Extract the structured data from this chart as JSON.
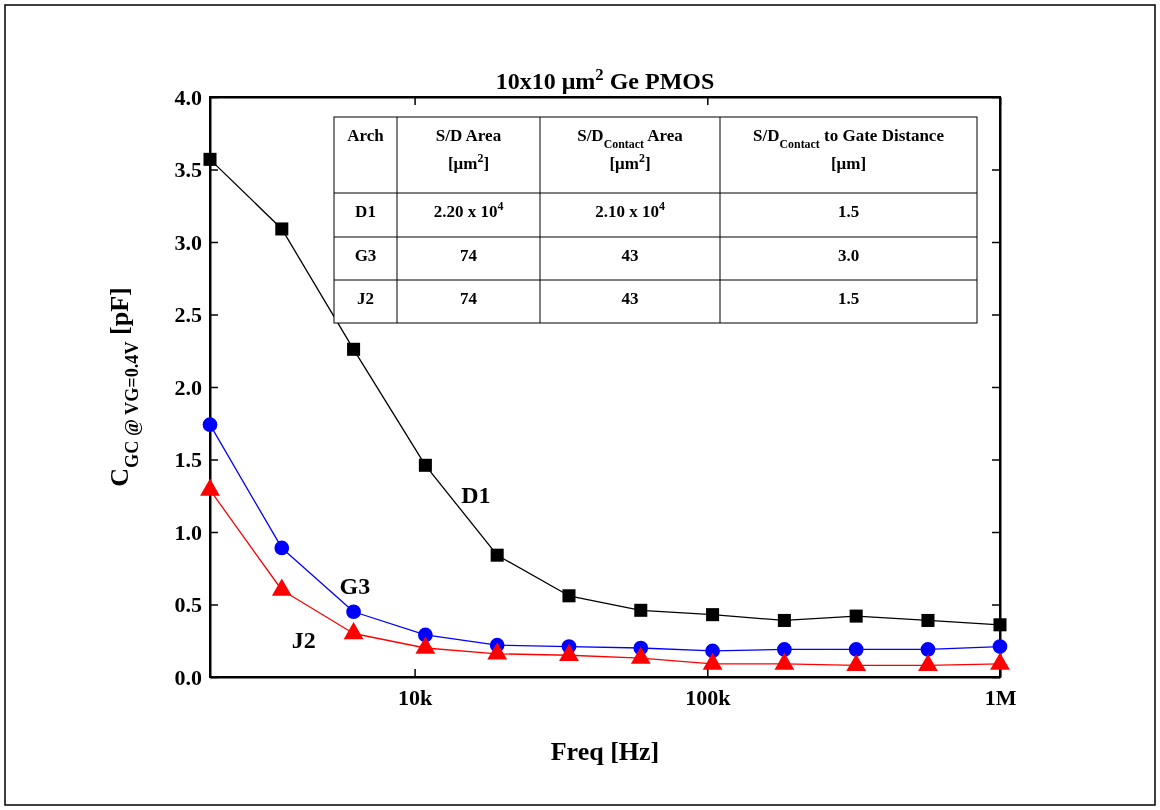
{
  "chart_data": {
    "type": "line",
    "title": "10x10 μm$^{2}$ Ge PMOS",
    "xlabel": "Freq [Hz]",
    "ylabel": "C$_{GC @ VG=0.4V}$ [pF]",
    "x": [
      2000,
      3518,
      6188,
      10886,
      19150,
      33687,
      59259,
      104244,
      183376,
      322580,
      567450,
      1000000
    ],
    "log": "x",
    "xlim": [
      2000,
      1000000
    ],
    "xticks": [
      {
        "value": 10000,
        "label": "10k"
      },
      {
        "value": 100000,
        "label": "100k"
      },
      {
        "value": 1000000,
        "label": "1M"
      }
    ],
    "ylim": [
      0,
      4
    ],
    "yticks": [
      {
        "value": 0,
        "label": "0.0"
      },
      {
        "value": 0.5,
        "label": "0.5"
      },
      {
        "value": 1,
        "label": "1.0"
      },
      {
        "value": 1.5,
        "label": "1.5"
      },
      {
        "value": 2,
        "label": "2.0"
      },
      {
        "value": 2.5,
        "label": "2.5"
      },
      {
        "value": 3,
        "label": "3.0"
      },
      {
        "value": 3.5,
        "label": "3.5"
      },
      {
        "value": 4,
        "label": "4.0"
      }
    ],
    "grid": false,
    "legend": false,
    "series": [
      {
        "name": "D1",
        "color": "#000000",
        "marker": "square",
        "values": [
          3.57,
          3.09,
          2.26,
          1.46,
          0.84,
          0.56,
          0.46,
          0.43,
          0.39,
          0.42,
          0.39,
          0.36
        ]
      },
      {
        "name": "G3",
        "color": "#0000ff",
        "marker": "circle",
        "values": [
          1.74,
          0.89,
          0.45,
          0.29,
          0.22,
          0.21,
          0.2,
          0.18,
          0.19,
          0.19,
          0.19,
          0.21
        ]
      },
      {
        "name": "J2",
        "color": "#ff0000",
        "marker": "triangle",
        "values": [
          1.29,
          0.6,
          0.3,
          0.2,
          0.16,
          0.15,
          0.13,
          0.09,
          0.09,
          0.08,
          0.08,
          0.09
        ]
      }
    ],
    "annotations": [
      "Arch",
      "S/D Area\n[μm$^{2}$]",
      "S/D$_{Contact}$ Area\n[μm$^{2}$]",
      "S/D$_{Contact}$ to Gate Distance\n[μm]",
      "D1",
      "2.20 x 10$^{4}$",
      "2.10 x 10$^{4}$",
      "1.5",
      "G3",
      "74",
      "43",
      "3.0",
      "J2",
      "74",
      "43",
      "1.5"
    ]
  }
}
